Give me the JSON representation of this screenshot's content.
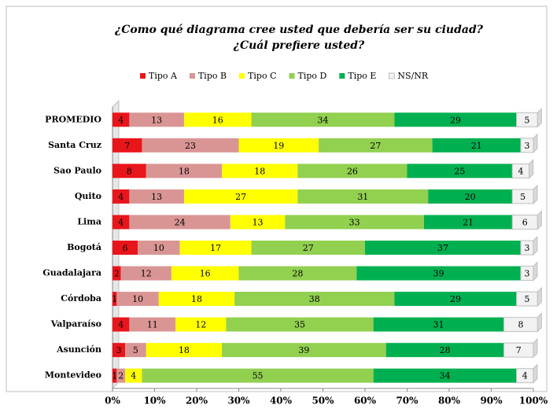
{
  "chart_data": {
    "type": "stacked-bar-horizontal",
    "title": "¿Como qué diagrama cree usted que debería ser su ciudad?",
    "subtitle": "¿Cuál prefiere usted?",
    "categories": [
      "PROMEDIO",
      "Santa Cruz",
      "Sao Paulo",
      "Quito",
      "Lima",
      "Bogotá",
      "Guadalajara",
      "Córdoba",
      "Valparaíso",
      "Asunción",
      "Montevideo"
    ],
    "series": [
      {
        "name": "Tipo A",
        "color": "#e8151b",
        "values": [
          4,
          7,
          8,
          4,
          4,
          6,
          2,
          1,
          4,
          3,
          1
        ]
      },
      {
        "name": "Tipo B",
        "color": "#d99594",
        "values": [
          13,
          23,
          18,
          13,
          24,
          10,
          12,
          10,
          11,
          5,
          2
        ]
      },
      {
        "name": "Tipo C",
        "color": "#ffff00",
        "values": [
          16,
          19,
          18,
          27,
          13,
          17,
          16,
          18,
          12,
          18,
          4
        ]
      },
      {
        "name": "Tipo D",
        "color": "#92d050",
        "values": [
          34,
          27,
          26,
          31,
          33,
          27,
          28,
          38,
          35,
          39,
          55
        ]
      },
      {
        "name": "Tipo E",
        "color": "#00b050",
        "values": [
          29,
          21,
          25,
          20,
          21,
          37,
          39,
          29,
          31,
          28,
          34
        ]
      },
      {
        "name": "NS/NR",
        "color": "#f2f2f2",
        "values": [
          5,
          3,
          4,
          5,
          6,
          3,
          3,
          5,
          8,
          7,
          4
        ]
      }
    ],
    "xlim": [
      0,
      100
    ],
    "xticks": [
      {
        "value": 0,
        "label": "0%"
      },
      {
        "value": 10,
        "label": "10%"
      },
      {
        "value": 20,
        "label": "20%"
      },
      {
        "value": 30,
        "label": "30%"
      },
      {
        "value": 40,
        "label": "40%"
      },
      {
        "value": 50,
        "label": "50%"
      },
      {
        "value": 60,
        "label": "60%"
      },
      {
        "value": 70,
        "label": "70%"
      },
      {
        "value": 80,
        "label": "80%"
      },
      {
        "value": 90,
        "label": "90%"
      },
      {
        "value": 100,
        "label": "100%"
      }
    ],
    "legend": "top"
  }
}
